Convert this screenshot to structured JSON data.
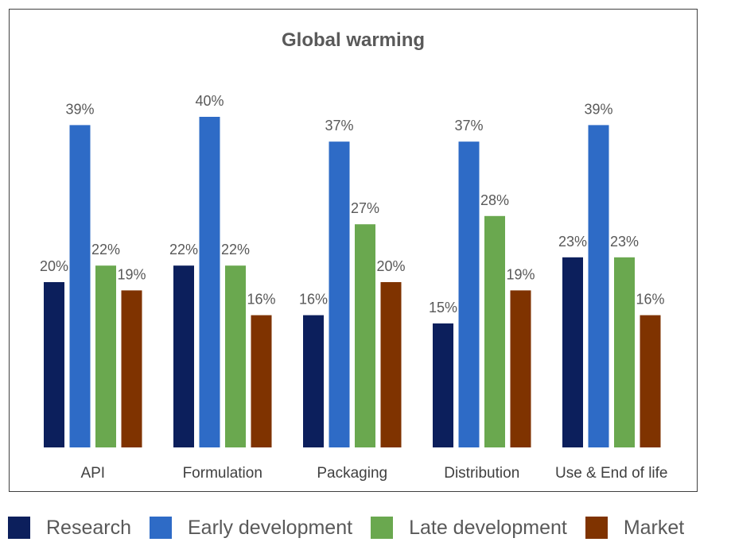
{
  "chart_data": {
    "type": "bar",
    "title": "Global warming",
    "categories": [
      "API",
      "Formulation",
      "Packaging",
      "Distribution",
      "Use & End of life"
    ],
    "series": [
      {
        "name": "Research",
        "color": "#0c1f5c",
        "values": [
          20,
          22,
          16,
          15,
          23
        ],
        "labels": [
          "20%",
          "22%",
          "16%",
          "15%",
          "23%"
        ]
      },
      {
        "name": "Early development",
        "color": "#2e6bc6",
        "values": [
          39,
          40,
          37,
          37,
          39
        ],
        "labels": [
          "39%",
          "40%",
          "37%",
          "37%",
          "39%"
        ]
      },
      {
        "name": "Late development",
        "color": "#6aa84f",
        "values": [
          22,
          22,
          27,
          28,
          23
        ],
        "labels": [
          "22%",
          "22%",
          "27%",
          "28%",
          "23%"
        ]
      },
      {
        "name": "Market",
        "color": "#7f3300",
        "values": [
          19,
          16,
          20,
          19,
          16
        ],
        "labels": [
          "19%",
          "16%",
          "20%",
          "19%",
          "16%"
        ]
      }
    ],
    "unit": "%",
    "ylim": [
      0,
      45
    ],
    "grid": false,
    "legend_position": "bottom"
  }
}
